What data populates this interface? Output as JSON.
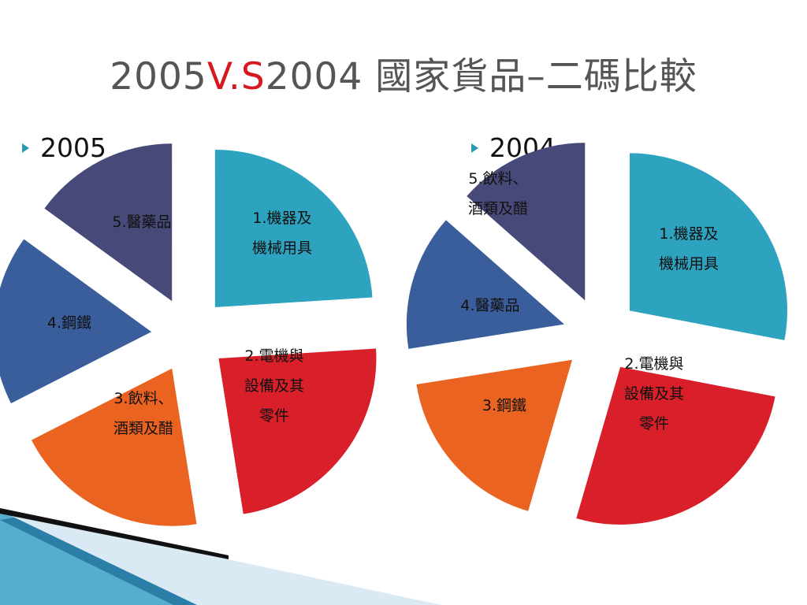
{
  "title": {
    "part1": "2005",
    "part2": "V.S",
    "part3": "2004 國家貨品–二碼比較"
  },
  "bullet_icon": "triangle-right-icon",
  "colors": {
    "title_text": "#555555",
    "title_accent": "#d7191f",
    "bullet": "#2a98b0",
    "slice_1": "#2ea3bf",
    "slice_2": "#d81f2a",
    "slice_3": "#ea6320",
    "slice_4": "#3a5e9c",
    "slice_5": "#474a78"
  },
  "chart_data": [
    {
      "type": "pie",
      "title": "2005",
      "slices": [
        {
          "label": "1.機器及\n機械用具",
          "value": 24.0
        },
        {
          "label": "2.電機與\n設備及其\n零件",
          "value": 23.5
        },
        {
          "label": "3.飲料、\n酒類及醋",
          "value": 20.0
        },
        {
          "label": "4.鋼鐵",
          "value": 17.5
        },
        {
          "label": "5.醫藥品",
          "value": 15.0
        }
      ]
    },
    {
      "type": "pie",
      "title": "2004",
      "slices": [
        {
          "label": "1.機器及\n機械用具",
          "value": 28.0
        },
        {
          "label": "2.電機與\n設備及其\n零件",
          "value": 26.5
        },
        {
          "label": "3.鋼鐵",
          "value": 18.0
        },
        {
          "label": "4.醫藥品",
          "value": 14.0
        },
        {
          "label": "5.飲料、\n酒類及醋",
          "value": 13.5
        }
      ]
    }
  ]
}
